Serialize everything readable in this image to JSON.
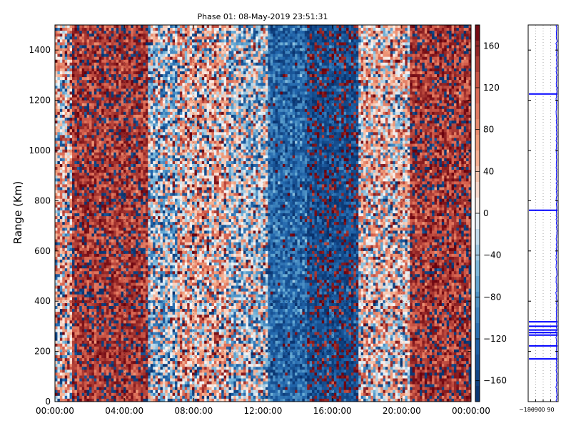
{
  "chart_data": [
    {
      "type": "heatmap",
      "title": "Phase 01: 08-May-2019 23:51:31",
      "ylabel": "Range (Km)",
      "xlabel": "",
      "x_range": [
        "00:00:00",
        "00:00:00 (+24h)"
      ],
      "x_ticks": [
        "00:00:00",
        "04:00:00",
        "08:00:00",
        "12:00:00",
        "16:00:00",
        "20:00:00",
        "00:00:00"
      ],
      "ylim": [
        0,
        1500
      ],
      "y_ticks": [
        "0",
        "200",
        "400",
        "600",
        "800",
        "1000",
        "1200",
        "1400"
      ],
      "colorbar": {
        "range": [
          -180,
          180
        ],
        "ticks": [
          "160",
          "120",
          "80",
          "40",
          "0",
          "−40",
          "−80",
          "−120",
          "−160"
        ],
        "colors": {
          "low": "#08306b",
          "mid": "#f7f7f7",
          "high": "#67000d"
        }
      },
      "time_bands": [
        {
          "from_h": 0.0,
          "to_h": 1.0,
          "mean_phase": 60
        },
        {
          "from_h": 1.0,
          "to_h": 5.3,
          "mean_phase": 150
        },
        {
          "from_h": 5.3,
          "to_h": 7.0,
          "mean_phase": -40
        },
        {
          "from_h": 7.0,
          "to_h": 10.0,
          "mean_phase": 60
        },
        {
          "from_h": 10.0,
          "to_h": 12.3,
          "mean_phase": -30
        },
        {
          "from_h": 12.3,
          "to_h": 14.5,
          "mean_phase": -120
        },
        {
          "from_h": 14.5,
          "to_h": 17.5,
          "mean_phase": -155
        },
        {
          "from_h": 17.5,
          "to_h": 20.5,
          "mean_phase": 40
        },
        {
          "from_h": 20.5,
          "to_h": 24.0,
          "mean_phase": 150
        }
      ],
      "grid": true
    },
    {
      "type": "line",
      "title": "",
      "xlim": [
        -180,
        180
      ],
      "x_ticks": [
        "−180",
        "−90",
        "0",
        "90"
      ],
      "ylim": [
        0,
        1500
      ],
      "grid": true,
      "series_color": "#0000ff",
      "spike_ranges_km": [
        170,
        222,
        265,
        275,
        285,
        300,
        318,
        762,
        1225
      ]
    }
  ]
}
